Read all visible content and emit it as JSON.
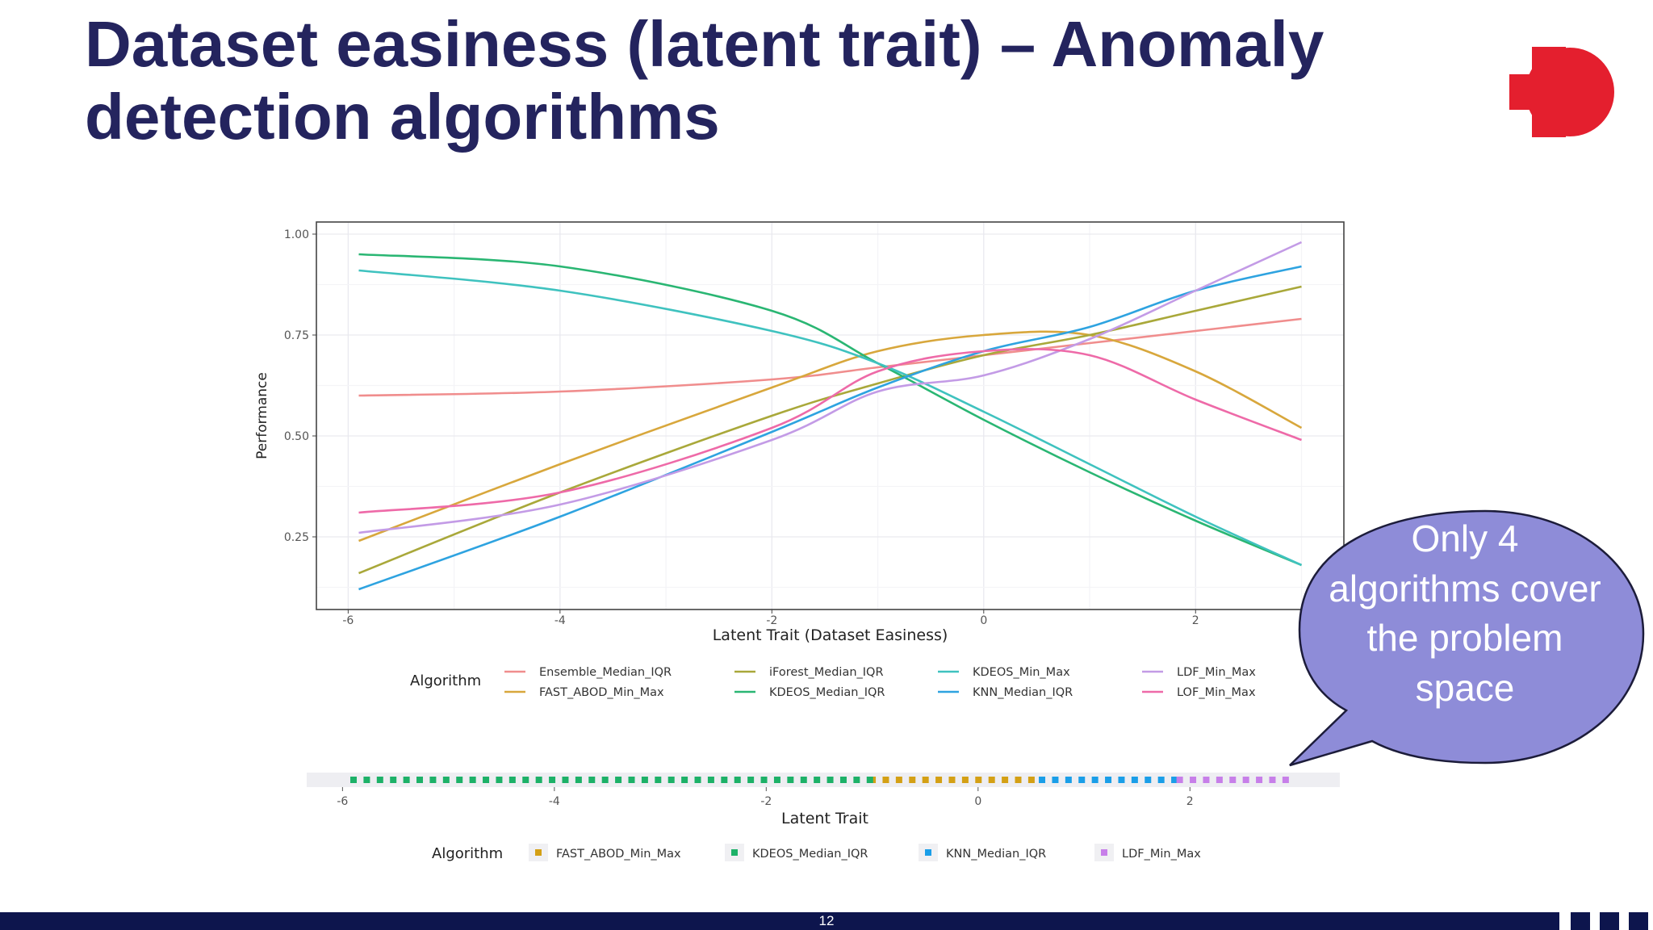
{
  "slide": {
    "title": "Dataset easiness (latent trait) – Anomaly detection algorithms",
    "page_number": "12",
    "callout": "Only 4 algorithms cover the problem space",
    "logo_icon": "red-circle-cross-logo",
    "colors": {
      "title": "#24245e",
      "footer": "#0d154d",
      "logo": "#e41f2e",
      "callout_fill": "#8e8cd8"
    }
  },
  "chart_data": [
    {
      "type": "line",
      "title": "",
      "xlabel": "Latent Trait (Dataset Easiness)",
      "ylabel": "Performance",
      "xlim": [
        -6.3,
        3.4
      ],
      "ylim": [
        0.07,
        1.03
      ],
      "x_ticks": [
        "-6",
        "-4",
        "-2",
        "0",
        "2"
      ],
      "y_ticks": [
        "0.25",
        "0.50",
        "0.75",
        "1.00"
      ],
      "grid": true,
      "legend_title": "Algorithm",
      "legend_position": "bottom",
      "x": [
        -5.9,
        -4.0,
        -2.0,
        -1.0,
        0.0,
        1.0,
        2.0,
        3.0
      ],
      "series": [
        {
          "name": "Ensemble_Median_IQR",
          "color": "#f08d8d",
          "values": [
            0.6,
            0.61,
            0.64,
            0.67,
            0.7,
            0.73,
            0.76,
            0.79
          ]
        },
        {
          "name": "FAST_ABOD_Min_Max",
          "color": "#d8a73c",
          "values": [
            0.24,
            0.43,
            0.62,
            0.71,
            0.75,
            0.75,
            0.66,
            0.52
          ]
        },
        {
          "name": "iForest_Median_IQR",
          "color": "#a9a83a",
          "values": [
            0.16,
            0.36,
            0.55,
            0.63,
            0.7,
            0.75,
            0.81,
            0.87
          ]
        },
        {
          "name": "KDEOS_Median_IQR",
          "color": "#2ab673",
          "values": [
            0.95,
            0.92,
            0.81,
            0.68,
            0.54,
            0.41,
            0.29,
            0.18
          ]
        },
        {
          "name": "KDEOS_Min_Max",
          "color": "#3fc2bf",
          "values": [
            0.91,
            0.86,
            0.76,
            0.68,
            0.56,
            0.43,
            0.3,
            0.18
          ]
        },
        {
          "name": "KNN_Median_IQR",
          "color": "#2ea3e0",
          "values": [
            0.12,
            0.3,
            0.51,
            0.62,
            0.71,
            0.77,
            0.86,
            0.92
          ]
        },
        {
          "name": "LDF_Min_Max",
          "color": "#c39be6",
          "values": [
            0.26,
            0.33,
            0.49,
            0.61,
            0.65,
            0.74,
            0.86,
            0.98
          ]
        },
        {
          "name": "LOF_Min_Max",
          "color": "#ee6aa8",
          "values": [
            0.31,
            0.36,
            0.52,
            0.66,
            0.71,
            0.7,
            0.59,
            0.49
          ]
        }
      ]
    },
    {
      "type": "scatter",
      "title": "",
      "xlabel": "Latent Trait",
      "xlim": [
        -6.3,
        3.4
      ],
      "x_ticks": [
        "-6",
        "-4",
        "-2",
        "0",
        "2"
      ],
      "legend_title": "Algorithm",
      "legend_position": "bottom",
      "segments": [
        {
          "name": "FAST_ABOD_Min_Max",
          "color": "#d4a015",
          "from": -1.0,
          "to": 0.6
        },
        {
          "name": "KDEOS_Median_IQR",
          "color": "#1db168",
          "from": -5.9,
          "to": -1.0
        },
        {
          "name": "KNN_Median_IQR",
          "color": "#1a9ee8",
          "from": 0.6,
          "to": 1.9
        },
        {
          "name": "LDF_Min_Max",
          "color": "#c77fe9",
          "from": 1.9,
          "to": 3.0
        }
      ],
      "legend_order": [
        "FAST_ABOD_Min_Max",
        "KDEOS_Median_IQR",
        "KNN_Median_IQR",
        "LDF_Min_Max"
      ]
    }
  ]
}
